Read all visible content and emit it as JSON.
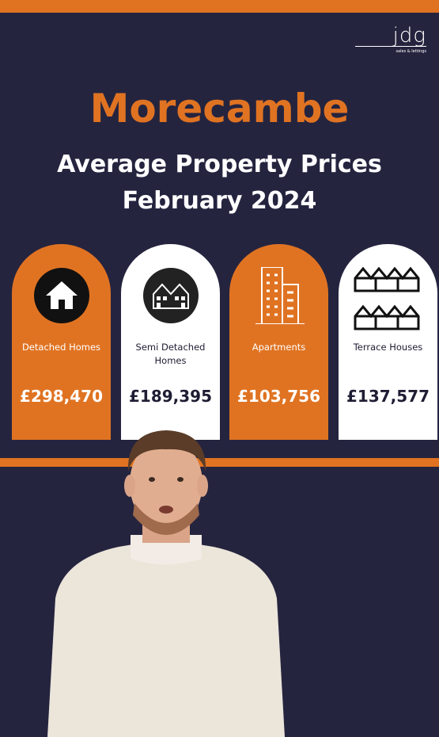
{
  "header": {
    "logo": "jdg",
    "logo_tagline": "sales & lettings"
  },
  "title": "Morecambe",
  "subtitle": "Average Property Prices",
  "date": "February 2024",
  "cards": [
    {
      "label": "Detached Homes",
      "price": "£298,470"
    },
    {
      "label": "Semi Detached Homes",
      "price": "£189,395"
    },
    {
      "label": "Apartments",
      "price": "£103,756"
    },
    {
      "label": "Terrace Houses",
      "price": "£137,577"
    }
  ]
}
